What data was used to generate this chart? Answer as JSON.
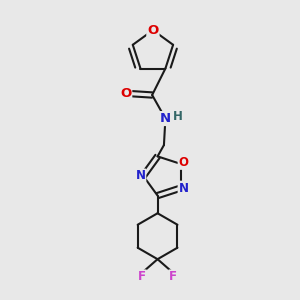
{
  "background_color": "#e8e8e8",
  "bond_color": "#1a1a1a",
  "bond_width": 1.5,
  "atom_colors": {
    "O": "#dd0000",
    "N": "#2222cc",
    "F": "#cc44cc",
    "H": "#336666",
    "C": "#1a1a1a"
  },
  "font_size": 8.5,
  "fig_width": 3.0,
  "fig_height": 3.0,
  "dpi": 100
}
